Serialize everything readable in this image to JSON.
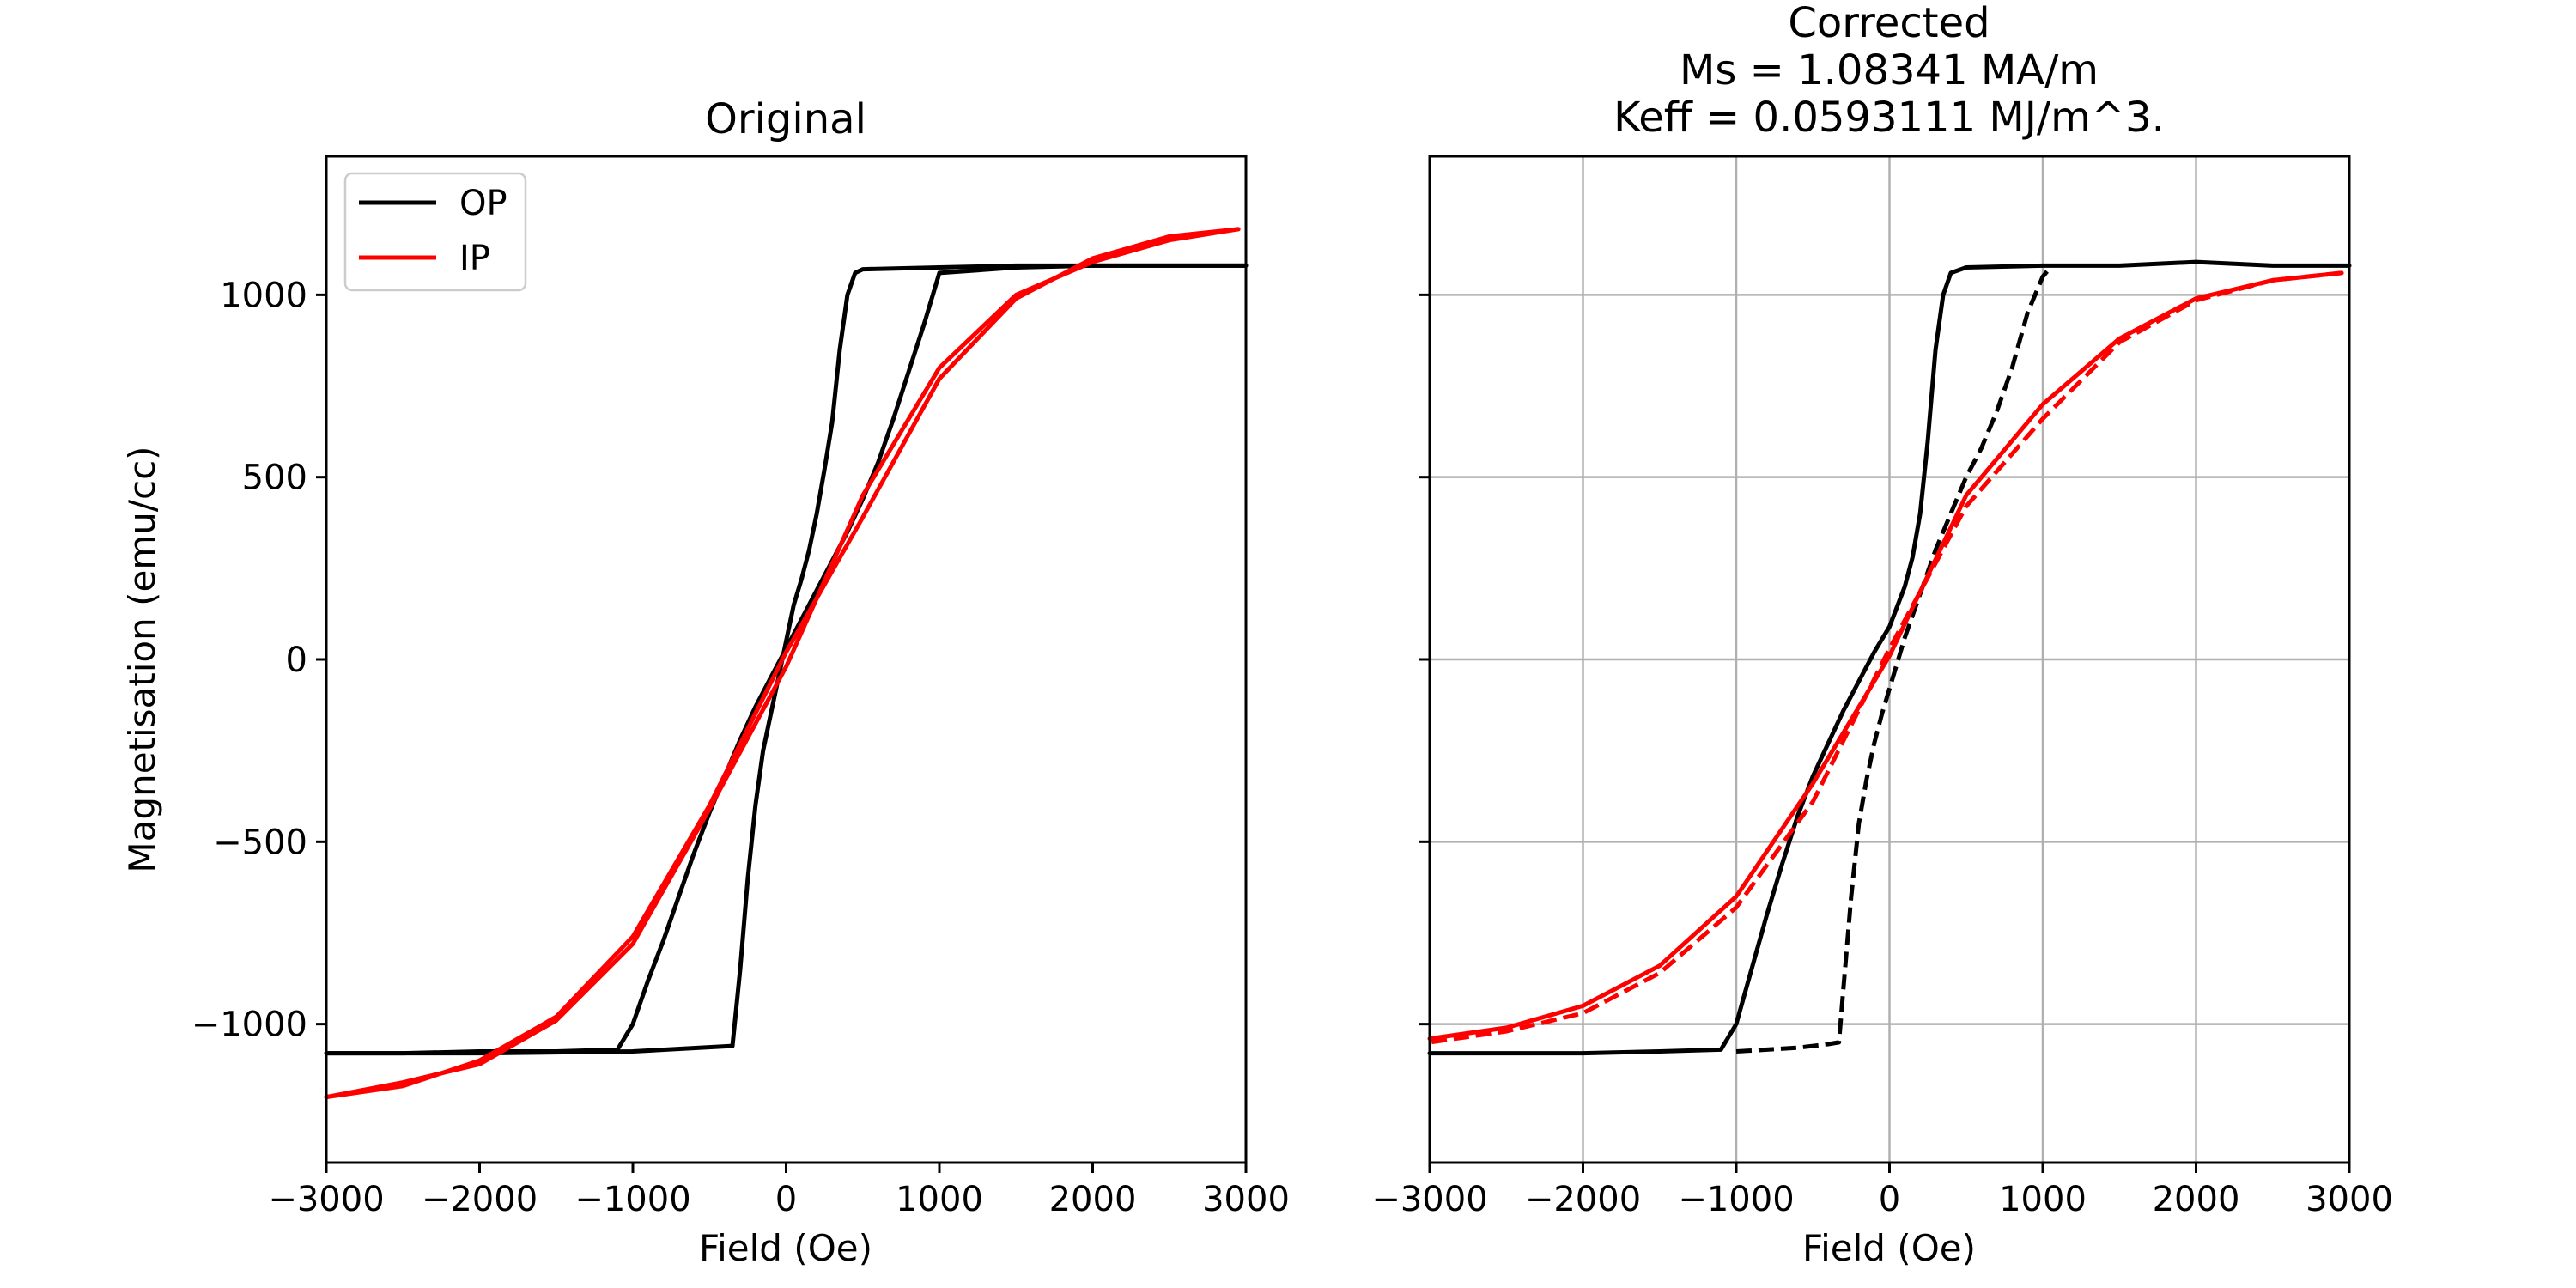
{
  "figure": {
    "ylabel": "Magnetisation (emu/cc)"
  },
  "chart_data": [
    {
      "type": "line",
      "title": "Original",
      "xlabel": "Field (Oe)",
      "ylabel": "Magnetisation (emu/cc)",
      "xlim": [
        -3000,
        3000
      ],
      "ylim": [
        -1380,
        1380
      ],
      "xticks": [
        -3000,
        -2000,
        -1000,
        0,
        1000,
        2000,
        3000
      ],
      "yticks": [
        -1000,
        -500,
        0,
        500,
        1000
      ],
      "xtick_labels": [
        "−3000",
        "−2000",
        "−1000",
        "0",
        "1000",
        "2000",
        "3000"
      ],
      "ytick_labels": [
        "−1000",
        "−500",
        "0",
        "500",
        "1000"
      ],
      "grid": false,
      "legend": {
        "position": "top-left",
        "entries": [
          {
            "name": "OP",
            "color": "#000000"
          },
          {
            "name": "IP",
            "color": "#ff0000"
          }
        ]
      },
      "series": [
        {
          "name": "OP",
          "color": "#000000",
          "dashed": false,
          "x": [
            -3000,
            -2500,
            -2000,
            -1500,
            -1100,
            -1000,
            -900,
            -800,
            -700,
            -600,
            -500,
            -400,
            -300,
            -200,
            -100,
            0,
            100,
            200,
            300,
            400,
            500,
            600,
            700,
            800,
            900,
            1000,
            1500,
            2000,
            2500,
            3000
          ],
          "y": [
            -1080,
            -1080,
            -1075,
            -1075,
            -1070,
            -1000,
            -880,
            -770,
            -650,
            -530,
            -420,
            -320,
            -220,
            -130,
            -50,
            30,
            110,
            190,
            270,
            350,
            440,
            540,
            660,
            790,
            920,
            1060,
            1075,
            1080,
            1080,
            1080
          ]
        },
        {
          "name": "OP",
          "color": "#000000",
          "dashed": false,
          "x": [
            3000,
            2500,
            2000,
            1500,
            1000,
            500,
            450,
            400,
            350,
            300,
            250,
            200,
            150,
            100,
            50,
            0,
            -50,
            -100,
            -150,
            -200,
            -250,
            -300,
            -350,
            -1000,
            -2000,
            -3000
          ],
          "y": [
            1080,
            1080,
            1080,
            1080,
            1075,
            1070,
            1060,
            1000,
            850,
            650,
            520,
            400,
            300,
            220,
            150,
            50,
            -50,
            -150,
            -250,
            -400,
            -600,
            -850,
            -1060,
            -1075,
            -1080,
            -1080
          ]
        },
        {
          "name": "IP",
          "color": "#ff0000",
          "dashed": false,
          "x": [
            -3000,
            -2500,
            -2000,
            -1500,
            -1000,
            -500,
            0,
            500,
            1000,
            1500,
            2000,
            2500,
            2950
          ],
          "y": [
            -1200,
            -1160,
            -1110,
            -990,
            -780,
            -410,
            -20,
            450,
            800,
            1000,
            1090,
            1150,
            1180
          ]
        },
        {
          "name": "IP",
          "color": "#ff0000",
          "dashed": false,
          "x": [
            2950,
            2500,
            2000,
            1500,
            1000,
            500,
            0,
            -500,
            -1000,
            -1500,
            -2000,
            -2500,
            -3000
          ],
          "y": [
            1180,
            1160,
            1100,
            990,
            770,
            390,
            20,
            -400,
            -760,
            -980,
            -1100,
            -1170,
            -1200
          ]
        }
      ]
    },
    {
      "type": "line",
      "title": "Corrected\nMs = 1.08341 MA/m\nKeff = 0.0593111 MJ/m^3.",
      "xlabel": "Field (Oe)",
      "xlim": [
        -3000,
        3000
      ],
      "ylim": [
        -1380,
        1380
      ],
      "xticks": [
        -3000,
        -2000,
        -1000,
        0,
        1000,
        2000,
        3000
      ],
      "yticks": [
        -1000,
        -500,
        0,
        500,
        1000
      ],
      "xtick_labels": [
        "−3000",
        "−2000",
        "−1000",
        "0",
        "1000",
        "2000",
        "3000"
      ],
      "grid": true,
      "series": [
        {
          "name": "OP",
          "color": "#000000",
          "dashed": false,
          "x": [
            -3000,
            -2500,
            -2000,
            -1500,
            -1100,
            -1000,
            -900,
            -800,
            -700,
            -600,
            -500,
            -400,
            -300,
            -200,
            -100,
            0,
            100,
            150,
            200,
            250,
            300,
            350,
            400,
            500,
            1000,
            1500,
            2000,
            2500,
            3000
          ],
          "y": [
            -1080,
            -1080,
            -1080,
            -1075,
            -1070,
            -1000,
            -850,
            -700,
            -560,
            -430,
            -320,
            -230,
            -140,
            -60,
            20,
            90,
            200,
            280,
            400,
            600,
            850,
            1000,
            1060,
            1075,
            1080,
            1080,
            1090,
            1080,
            1080
          ]
        },
        {
          "name": "OP",
          "color": "#000000",
          "dashed": true,
          "x": [
            -1000,
            -800,
            -600,
            -400,
            -330,
            -300,
            -250,
            -200,
            -150,
            -100,
            -50,
            0,
            100,
            200,
            300,
            400,
            500,
            600,
            700,
            800,
            900,
            1000,
            1050
          ],
          "y": [
            -1075,
            -1070,
            -1065,
            -1055,
            -1050,
            -900,
            -650,
            -450,
            -330,
            -230,
            -150,
            -80,
            60,
            180,
            300,
            400,
            500,
            580,
            680,
            800,
            950,
            1050,
            1075
          ]
        },
        {
          "name": "IP",
          "color": "#ff0000",
          "dashed": false,
          "x": [
            -3000,
            -2500,
            -2000,
            -1500,
            -1000,
            -500,
            0,
            500,
            1000,
            1500,
            2000,
            2500,
            2950
          ],
          "y": [
            -1040,
            -1010,
            -950,
            -840,
            -650,
            -340,
            10,
            450,
            700,
            880,
            990,
            1040,
            1060
          ]
        },
        {
          "name": "IP",
          "color": "#ff0000",
          "dashed": true,
          "x": [
            2950,
            2500,
            2000,
            1500,
            1000,
            500,
            0,
            -500,
            -1000,
            -1500,
            -2000,
            -2500,
            -3000
          ],
          "y": [
            1060,
            1040,
            985,
            870,
            660,
            420,
            30,
            -390,
            -680,
            -860,
            -970,
            -1020,
            -1050
          ]
        }
      ]
    }
  ]
}
